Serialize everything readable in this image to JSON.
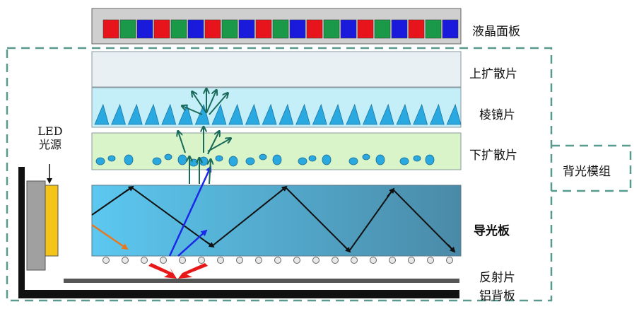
{
  "layers": {
    "lcd_panel": "液晶面板",
    "upper_diffuser": "上扩散片",
    "prism_sheet": "棱镜片",
    "lower_diffuser": "下扩散片",
    "light_guide": "导光板",
    "reflector": "反射片",
    "aluminum_back": "铝背板"
  },
  "backlight_module": "背光模组",
  "led": {
    "line1": "LED",
    "line2": "光源"
  },
  "colors": {
    "pixel_red": "#e8141c",
    "pixel_green": "#1a9a48",
    "pixel_blue": "#1a1adc",
    "dashed_border": "#5a9a8e",
    "prism": "#2aa8e0",
    "lower_diffuser_fill": "#d8f4c8",
    "prism_fill": "#c4eef8",
    "upper_diffuser_fill": "#e8f0f4",
    "light_guide_left": "#5cc8f0",
    "light_guide_right": "#4a8aa8",
    "led_chip": "#f4c418",
    "arrow_teal": "#1a6a5a",
    "arrow_blue": "#1a28e8",
    "arrow_red": "#e81818",
    "arrow_orange": "#e87820"
  }
}
